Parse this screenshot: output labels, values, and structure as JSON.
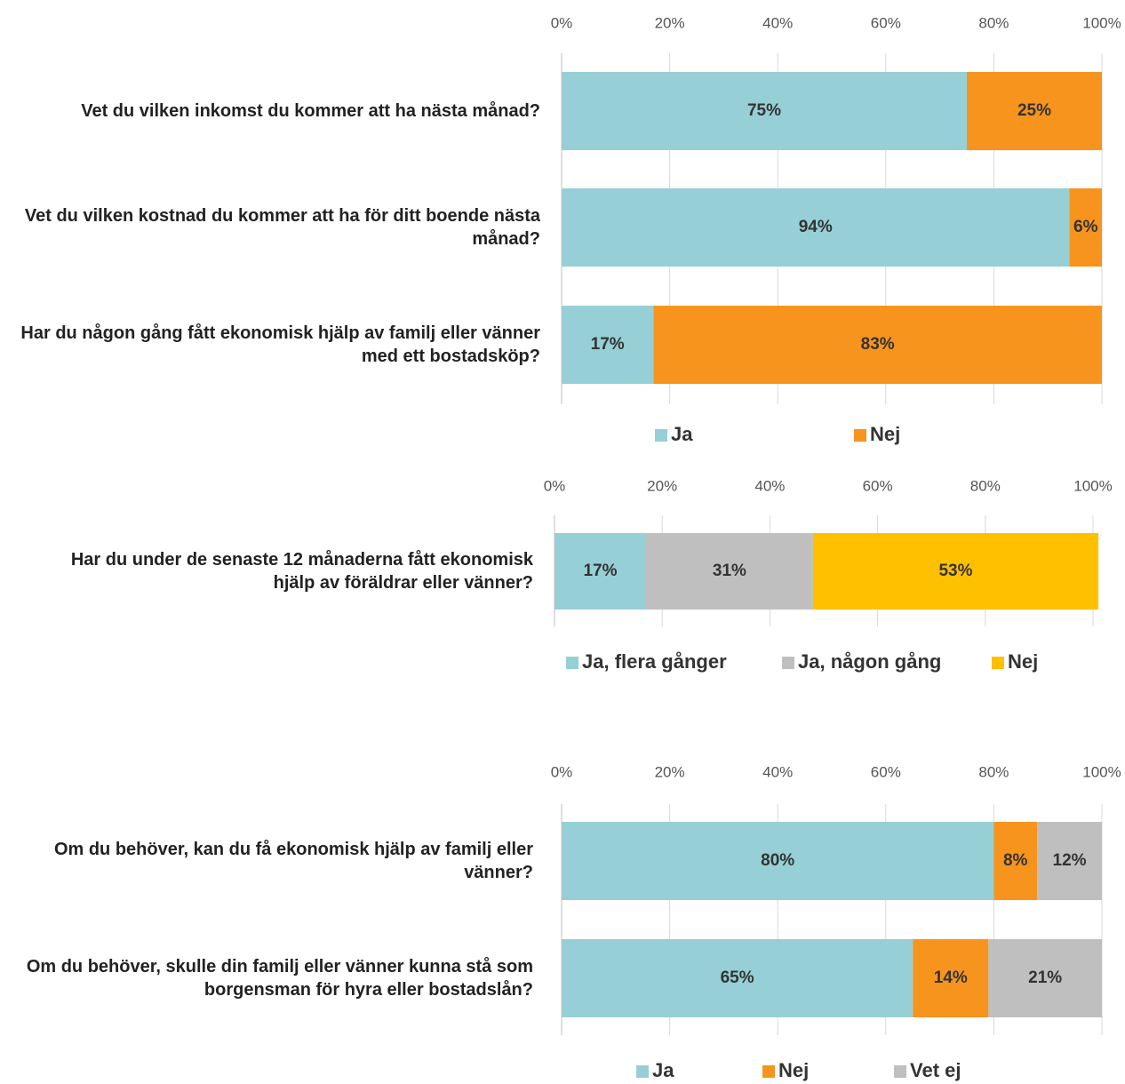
{
  "chart_data": [
    {
      "type": "stacked_bar_horizontal",
      "categories": [
        "Vet du vilken inkomst du kommer att ha nästa månad?",
        "Vet du vilken kostnad du kommer att ha för ditt boende nästa månad?",
        "Har du någon gång fått ekonomisk hjälp av familj eller vänner med ett bostadsköp?"
      ],
      "series": [
        {
          "name": "Ja",
          "color": "#96cfd6",
          "values": [
            75,
            94,
            17
          ],
          "value_labels": [
            "75%",
            "94%",
            "17%"
          ]
        },
        {
          "name": "Nej",
          "color": "#f7941d",
          "values": [
            25,
            6,
            83
          ],
          "value_labels": [
            "25%",
            "6%",
            "83%"
          ]
        }
      ],
      "xlim": [
        0,
        100
      ],
      "xticks": [
        {
          "value": 0,
          "label": "0%"
        },
        {
          "value": 20,
          "label": "20%"
        },
        {
          "value": 40,
          "label": "40%"
        },
        {
          "value": 60,
          "label": "60%"
        },
        {
          "value": 80,
          "label": "80%"
        },
        {
          "value": 100,
          "label": "100%"
        }
      ],
      "grid": true,
      "legend": "bottom"
    },
    {
      "type": "stacked_bar_horizontal",
      "categories": [
        "Har du under de senaste 12 månaderna fått ekonomisk hjälp av föräldrar eller vänner?"
      ],
      "series": [
        {
          "name": "Ja, flera gånger",
          "color": "#96cfd6",
          "values": [
            17
          ],
          "value_labels": [
            "17%"
          ]
        },
        {
          "name": "Ja, någon gång",
          "color": "#bfbfbf",
          "values": [
            31
          ],
          "value_labels": [
            "31%"
          ]
        },
        {
          "name": "Nej",
          "color": "#ffc000",
          "values": [
            53
          ],
          "value_labels": [
            "53%"
          ]
        }
      ],
      "xlim": [
        0,
        100
      ],
      "xticks": [
        {
          "value": 0,
          "label": "0%"
        },
        {
          "value": 20,
          "label": "20%"
        },
        {
          "value": 40,
          "label": "40%"
        },
        {
          "value": 60,
          "label": "60%"
        },
        {
          "value": 80,
          "label": "80%"
        },
        {
          "value": 100,
          "label": "100%"
        }
      ],
      "grid": true,
      "legend": "bottom"
    },
    {
      "type": "stacked_bar_horizontal",
      "categories": [
        "Om du behöver, kan du få ekonomisk hjälp av familj eller vänner?",
        "Om du behöver, skulle din familj eller vänner kunna stå som borgensman för hyra eller bostadslån?"
      ],
      "series": [
        {
          "name": "Ja",
          "color": "#96cfd6",
          "values": [
            80,
            65
          ],
          "value_labels": [
            "80%",
            "65%"
          ]
        },
        {
          "name": "Nej",
          "color": "#f7941d",
          "values": [
            8,
            14
          ],
          "value_labels": [
            "8%",
            "14%"
          ]
        },
        {
          "name": "Vet ej",
          "color": "#bfbfbf",
          "values": [
            12,
            21
          ],
          "value_labels": [
            "12%",
            "21%"
          ]
        }
      ],
      "xlim": [
        0,
        100
      ],
      "xticks": [
        {
          "value": 0,
          "label": "0%"
        },
        {
          "value": 20,
          "label": "20%"
        },
        {
          "value": 40,
          "label": "40%"
        },
        {
          "value": 60,
          "label": "60%"
        },
        {
          "value": 80,
          "label": "80%"
        },
        {
          "value": 100,
          "label": "100%"
        }
      ],
      "grid": true,
      "legend": "bottom"
    }
  ]
}
